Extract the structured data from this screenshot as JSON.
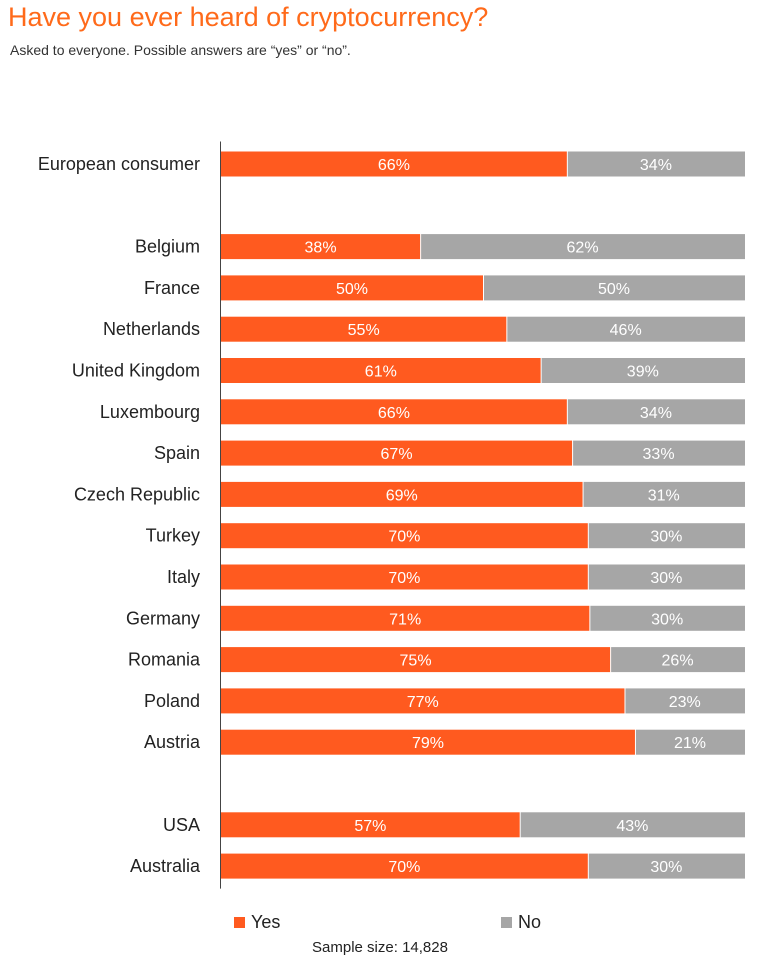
{
  "title": "Have you ever heard of cryptocurrency?",
  "subtitle": "Asked to everyone. Possible answers are “yes” or “no”.",
  "sample_size": "Sample size: 14,828",
  "legend": {
    "yes_label": "Yes",
    "no_label": "No"
  },
  "colors": {
    "title": "#ff6a1a",
    "yes": "#ff5a1f",
    "no": "#a6a6a6",
    "bar_text": "#ffffff",
    "axis": "#444444"
  },
  "chart_data": {
    "type": "bar",
    "orientation": "horizontal",
    "stacked": true,
    "title": "Have you ever heard of cryptocurrency?",
    "categories": [
      "European consumer",
      "Belgium",
      "France",
      "Netherlands",
      "United Kingdom",
      "Luxembourg",
      "Spain",
      "Czech Republic",
      "Turkey",
      "Italy",
      "Germany",
      "Romania",
      "Poland",
      "Austria",
      "USA",
      "Australia"
    ],
    "groups": [
      [
        "European consumer"
      ],
      [
        "Belgium",
        "France",
        "Netherlands",
        "United Kingdom",
        "Luxembourg",
        "Spain",
        "Czech Republic",
        "Turkey",
        "Italy",
        "Germany",
        "Romania",
        "Poland",
        "Austria"
      ],
      [
        "USA",
        "Australia"
      ]
    ],
    "series": [
      {
        "name": "Yes",
        "values": [
          66,
          38,
          50,
          55,
          61,
          66,
          67,
          69,
          70,
          70,
          71,
          75,
          77,
          79,
          57,
          70
        ],
        "labels": [
          "66%",
          "38%",
          "50%",
          "55%",
          "61%",
          "66%",
          "67%",
          "69%",
          "70%",
          "70%",
          "71%",
          "75%",
          "77%",
          "79%",
          "57%",
          "70%"
        ]
      },
      {
        "name": "No",
        "values": [
          34,
          62,
          50,
          46,
          39,
          34,
          33,
          31,
          30,
          30,
          30,
          26,
          23,
          21,
          43,
          30
        ],
        "labels": [
          "34%",
          "62%",
          "50%",
          "46%",
          "39%",
          "34%",
          "33%",
          "31%",
          "30%",
          "30%",
          "30%",
          "26%",
          "23%",
          "21%",
          "43%",
          "30%"
        ]
      }
    ],
    "xlim": [
      0,
      100
    ],
    "grid": false,
    "legend_position": "bottom"
  }
}
